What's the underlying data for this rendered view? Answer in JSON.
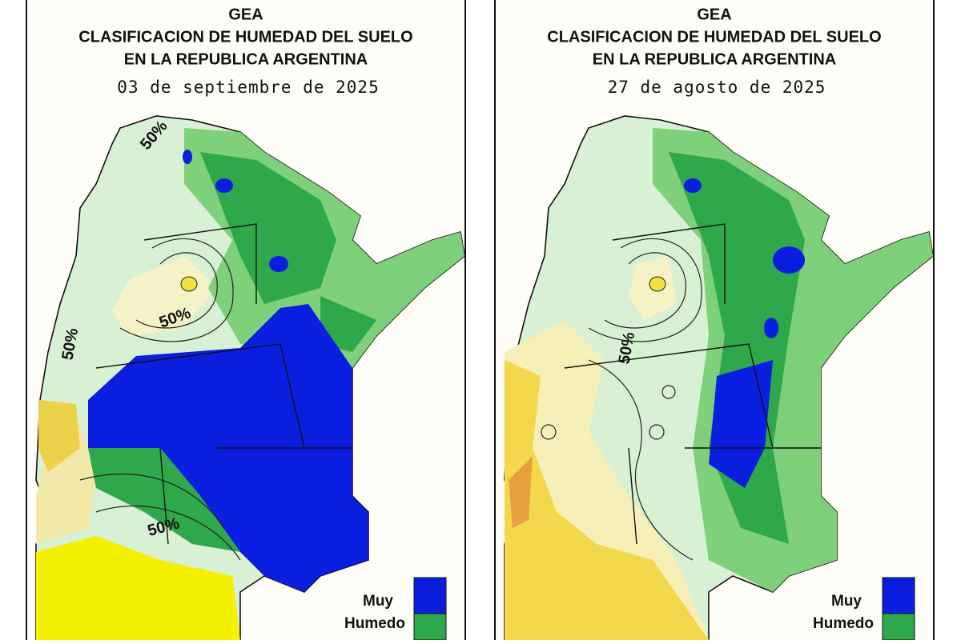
{
  "panels": [
    {
      "title": "GEA",
      "line1": "CLASIFICACION DE HUMEDAD DEL SUELO",
      "line2": "EN LA REPUBLICA ARGENTINA",
      "date": "03 de septiembre de 2025",
      "contour_labels": [
        "50%",
        "50%",
        "50%",
        "50%"
      ],
      "legend": {
        "line1": "Muy",
        "line2": "Humedo"
      }
    },
    {
      "title": "GEA",
      "line1": "CLASIFICACION DE HUMEDAD DEL SUELO",
      "line2": "EN LA REPUBLICA ARGENTINA",
      "date": "27 de agosto de 2025",
      "contour_labels": [
        "50%"
      ],
      "legend": {
        "line1": "Muy",
        "line2": "Humedo"
      }
    }
  ]
}
